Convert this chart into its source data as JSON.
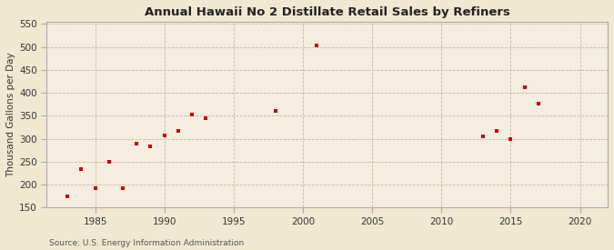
{
  "title": "Annual Hawaii No 2 Distillate Retail Sales by Refiners",
  "ylabel": "Thousand Gallons per Day",
  "source": "Source: U.S. Energy Information Administration",
  "xlim": [
    1981.5,
    2022
  ],
  "ylim": [
    150,
    555
  ],
  "yticks": [
    150,
    200,
    250,
    300,
    350,
    400,
    450,
    500,
    550
  ],
  "xticks": [
    1985,
    1990,
    1995,
    2000,
    2005,
    2010,
    2015,
    2020
  ],
  "outer_background": "#f0e8d0",
  "plot_background": "#f5ede0",
  "marker_color": "#cc0000",
  "grid_color": "#c8b89a",
  "spine_color": "#aaaaaa",
  "data_points": [
    [
      1983,
      175
    ],
    [
      1984,
      233
    ],
    [
      1985,
      192
    ],
    [
      1986,
      250
    ],
    [
      1987,
      192
    ],
    [
      1988,
      290
    ],
    [
      1989,
      283
    ],
    [
      1990,
      308
    ],
    [
      1991,
      318
    ],
    [
      1992,
      352
    ],
    [
      1993,
      345
    ],
    [
      1998,
      360
    ],
    [
      2001,
      503
    ],
    [
      2013,
      305
    ],
    [
      2014,
      318
    ],
    [
      2015,
      300
    ],
    [
      2016,
      413
    ],
    [
      2017,
      377
    ]
  ]
}
